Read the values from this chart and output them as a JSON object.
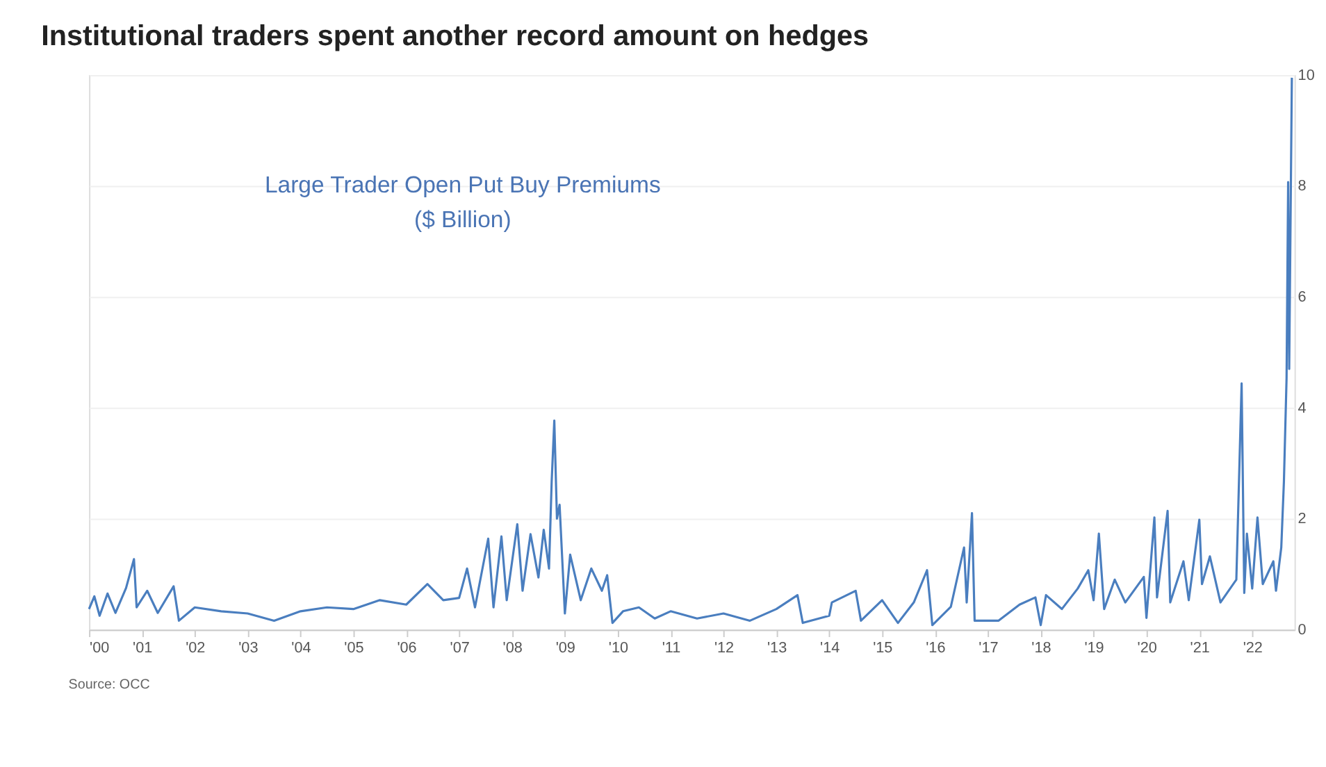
{
  "chart_data": {
    "type": "line",
    "title": "Institutional traders spent another record amount on hedges",
    "annotations": [
      "Large Trader Open Put Buy Premiums\n($ Billion)",
      "Source: OCC"
    ],
    "xlim": [
      2000,
      2022.8
    ],
    "ylim": [
      0,
      10
    ],
    "yticks": [
      0,
      2,
      4,
      6,
      8,
      10
    ],
    "xticks": [
      {
        "value": 2000,
        "label": "'00"
      },
      {
        "value": 2001,
        "label": "'01"
      },
      {
        "value": 2002,
        "label": "'02"
      },
      {
        "value": 2003,
        "label": "'03"
      },
      {
        "value": 2004,
        "label": "'04"
      },
      {
        "value": 2005,
        "label": "'05"
      },
      {
        "value": 2006,
        "label": "'06"
      },
      {
        "value": 2007,
        "label": "'07"
      },
      {
        "value": 2008,
        "label": "'08"
      },
      {
        "value": 2009,
        "label": "'09"
      },
      {
        "value": 2010,
        "label": "'10"
      },
      {
        "value": 2011,
        "label": "'11"
      },
      {
        "value": 2012,
        "label": "'12"
      },
      {
        "value": 2013,
        "label": "'13"
      },
      {
        "value": 2014,
        "label": "'14"
      },
      {
        "value": 2015,
        "label": "'15"
      },
      {
        "value": 2016,
        "label": "'16"
      },
      {
        "value": 2017,
        "label": "'17"
      },
      {
        "value": 2018,
        "label": "'18"
      },
      {
        "value": 2019,
        "label": "'19"
      },
      {
        "value": 2020,
        "label": "'20"
      },
      {
        "value": 2021,
        "label": "'21"
      },
      {
        "value": 2022,
        "label": "'22"
      }
    ],
    "grid": "y",
    "legend": false,
    "line_style": "solid",
    "series": [
      {
        "color": "#4a7ebf",
        "x": [
          2000.0,
          2000.1,
          2000.2,
          2000.35,
          2000.5,
          2000.7,
          2000.85,
          2000.9,
          2001.1,
          2001.3,
          2001.6,
          2001.7,
          2002.0,
          2002.5,
          2003.0,
          2003.5,
          2004.0,
          2004.5,
          2005.0,
          2005.5,
          2006.0,
          2006.4,
          2006.7,
          2007.0,
          2007.15,
          2007.3,
          2007.55,
          2007.65,
          2007.8,
          2007.9,
          2008.1,
          2008.2,
          2008.35,
          2008.5,
          2008.6,
          2008.7,
          2008.75,
          2008.8,
          2008.85,
          2008.9,
          2009.0,
          2009.1,
          2009.3,
          2009.5,
          2009.7,
          2009.8,
          2009.9,
          2010.1,
          2010.4,
          2010.7,
          2011.0,
          2011.5,
          2012.0,
          2012.5,
          2013.0,
          2013.4,
          2013.5,
          2014.0,
          2014.05,
          2014.5,
          2014.6,
          2015.0,
          2015.3,
          2015.6,
          2015.85,
          2015.95,
          2016.3,
          2016.55,
          2016.6,
          2016.7,
          2016.75,
          2017.2,
          2017.6,
          2017.9,
          2018.0,
          2018.1,
          2018.4,
          2018.7,
          2018.9,
          2019.0,
          2019.1,
          2019.2,
          2019.4,
          2019.6,
          2019.95,
          2020.0,
          2020.15,
          2020.2,
          2020.4,
          2020.45,
          2020.7,
          2020.8,
          2021.0,
          2021.05,
          2021.2,
          2021.4,
          2021.7,
          2021.8,
          2021.85,
          2021.9,
          2022.0,
          2022.1,
          2022.2,
          2022.4,
          2022.45,
          2022.55,
          2022.6,
          2022.65,
          2022.68,
          2022.7,
          2022.75
        ],
        "values": [
          0.37,
          0.6,
          0.25,
          0.65,
          0.3,
          0.75,
          1.27,
          0.4,
          0.7,
          0.3,
          0.78,
          0.16,
          0.4,
          0.33,
          0.29,
          0.16,
          0.33,
          0.4,
          0.37,
          0.53,
          0.45,
          0.82,
          0.53,
          0.57,
          1.1,
          0.4,
          1.64,
          0.4,
          1.68,
          0.53,
          1.9,
          0.7,
          1.72,
          0.94,
          1.8,
          1.1,
          2.66,
          3.77,
          2.0,
          2.25,
          0.29,
          1.35,
          0.53,
          1.1,
          0.7,
          0.98,
          0.12,
          0.33,
          0.4,
          0.2,
          0.33,
          0.2,
          0.29,
          0.16,
          0.37,
          0.62,
          0.12,
          0.25,
          0.49,
          0.7,
          0.16,
          0.53,
          0.12,
          0.49,
          1.07,
          0.08,
          0.41,
          1.48,
          0.49,
          2.1,
          0.16,
          0.16,
          0.45,
          0.58,
          0.08,
          0.62,
          0.37,
          0.74,
          1.07,
          0.53,
          1.73,
          0.37,
          0.9,
          0.49,
          0.95,
          0.21,
          2.02,
          0.58,
          2.14,
          0.49,
          1.23,
          0.53,
          1.98,
          0.82,
          1.32,
          0.49,
          0.9,
          4.44,
          0.66,
          1.73,
          0.74,
          2.02,
          0.82,
          1.23,
          0.7,
          1.48,
          2.67,
          4.53,
          8.07,
          4.7,
          9.95
        ]
      }
    ]
  }
}
